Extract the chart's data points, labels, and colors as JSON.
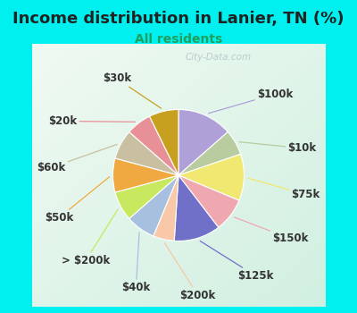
{
  "title": "Income distribution in Lanier, TN (%)",
  "subtitle": "All residents",
  "top_bg_color": "#00EFEF",
  "chart_bg_top": "#e8f8f0",
  "chart_bg_bottom": "#d0f0e8",
  "labels": [
    "$100k",
    "$10k",
    "$75k",
    "$150k",
    "$125k",
    "$200k",
    "$40k",
    "> $200k",
    "$50k",
    "$60k",
    "$20k",
    "$30k"
  ],
  "values": [
    13,
    6,
    11,
    8,
    11,
    5,
    7,
    7,
    8,
    7,
    6,
    7
  ],
  "colors": [
    "#b0a0d8",
    "#b8cca0",
    "#f0e870",
    "#f0a8b0",
    "#7070c8",
    "#f8c8a8",
    "#a8c0e0",
    "#c8e860",
    "#f0a840",
    "#c8c0a0",
    "#e89098",
    "#c8a020"
  ],
  "watermark": "City-Data.com",
  "label_fontsize": 8.5,
  "title_fontsize": 13,
  "subtitle_fontsize": 10,
  "title_color": "#222222",
  "subtitle_color": "#20a060",
  "label_color": "#333333"
}
